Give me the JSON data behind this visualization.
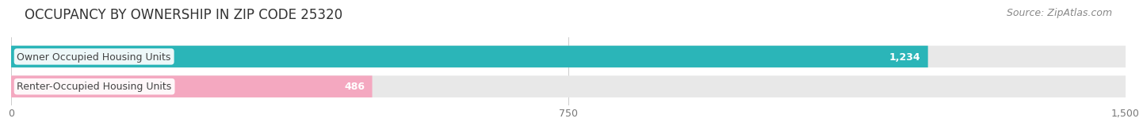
{
  "title": "OCCUPANCY BY OWNERSHIP IN ZIP CODE 25320",
  "source": "Source: ZipAtlas.com",
  "categories": [
    "Owner Occupied Housing Units",
    "Renter-Occupied Housing Units"
  ],
  "values": [
    1234,
    486
  ],
  "bar_colors": [
    "#2BB5B8",
    "#F4A8C0"
  ],
  "xlim": [
    0,
    1500
  ],
  "xticks": [
    0,
    750,
    1500
  ],
  "xtick_labels": [
    "0",
    "750",
    "1,500"
  ],
  "background_color": "#ffffff",
  "bar_background_color": "#e8e8e8",
  "title_fontsize": 12,
  "source_fontsize": 9,
  "label_fontsize": 9,
  "value_fontsize": 9
}
